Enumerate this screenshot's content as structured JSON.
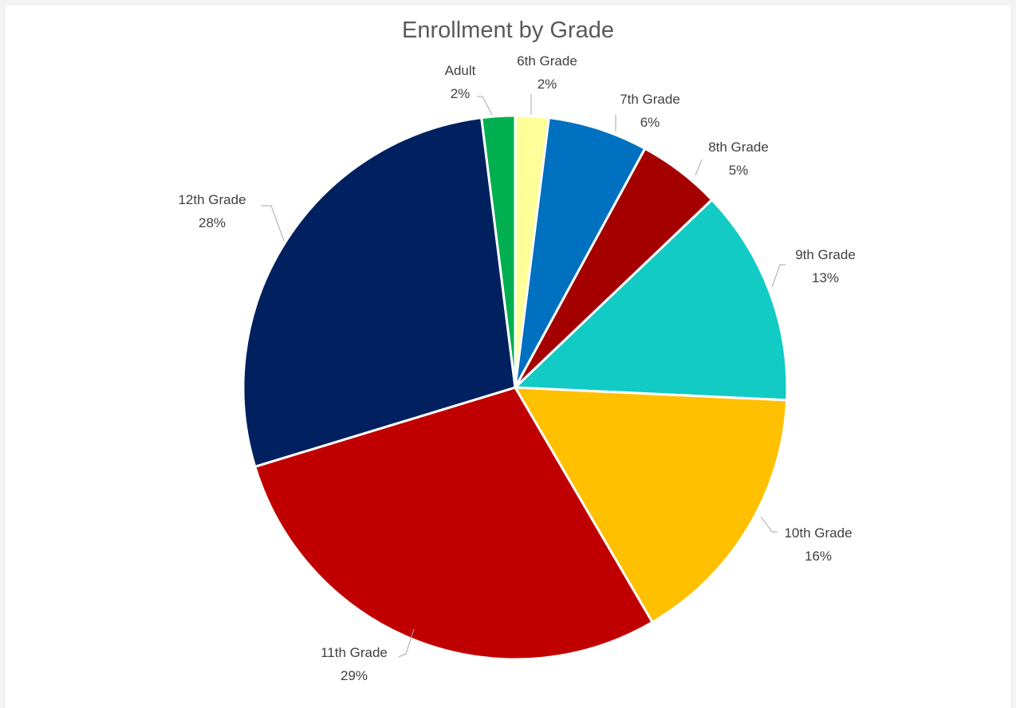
{
  "chart_data": {
    "type": "pie",
    "title": "Enrollment by Grade",
    "categories": [
      "6th Grade",
      "7th Grade",
      "8th Grade",
      "9th Grade",
      "10th Grade",
      "11th Grade",
      "12th Grade",
      "Adult"
    ],
    "values": [
      2,
      6,
      5,
      13,
      16,
      29,
      28,
      2
    ],
    "value_labels": [
      "2%",
      "6%",
      "5%",
      "13%",
      "16%",
      "29%",
      "28%",
      "2%"
    ],
    "colors": [
      "#FFFF99",
      "#0070C0",
      "#A50000",
      "#12CBC4",
      "#FFC000",
      "#C00000",
      "#002060",
      "#00B050"
    ],
    "start_angle_deg": 0,
    "direction": "clockwise",
    "legend": "none",
    "grid": false
  }
}
